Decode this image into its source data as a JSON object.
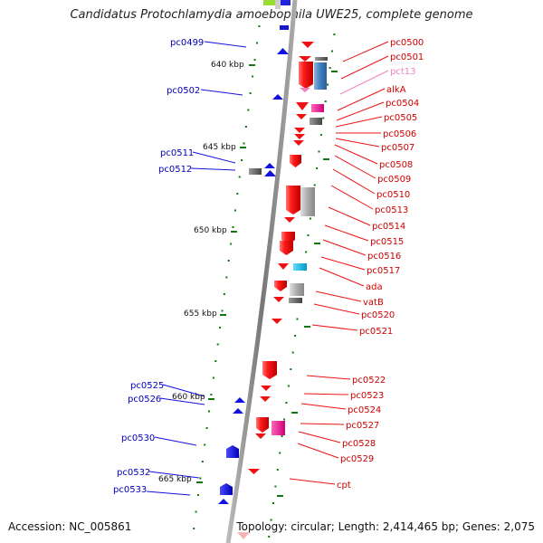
{
  "title": "Candidatus Protochlamydia amoebophila UWE25, complete genome",
  "accession": "Accession: NC_005861",
  "summary": "Topology: circular; Length: 2,414,465 bp; Genes: 2,075",
  "colors": {
    "forward": "#ee1111",
    "reverse": "#1111dd",
    "gene_label_forward": "#cc0000",
    "gene_label_reverse": "#0000bb",
    "pct13": "#f080c0",
    "tick": "#117711",
    "backbone": "#888888"
  },
  "scale_labels": [
    "640 kbp",
    "645 kbp",
    "650 kbp",
    "655 kbp",
    "660 kbp",
    "665 kbp"
  ],
  "left_labels": [
    "pc0499",
    "pc0502",
    "pc0511",
    "pc0512",
    "pc0525",
    "pc0526",
    "pc0530",
    "pc0532",
    "pc0533"
  ],
  "right_labels": [
    "pc0500",
    "pc0501",
    "pct13",
    "alkA",
    "pc0504",
    "pc0505",
    "pc0506",
    "pc0507",
    "pc0508",
    "pc0509",
    "pc0510",
    "pc0513",
    "pc0514",
    "pc0515",
    "pc0516",
    "pc0517",
    "ada",
    "vatB",
    "pc0520",
    "pc0521",
    "pc0522",
    "pc0523",
    "pc0524",
    "pc0527",
    "pc0528",
    "pc0529",
    "cpt"
  ]
}
